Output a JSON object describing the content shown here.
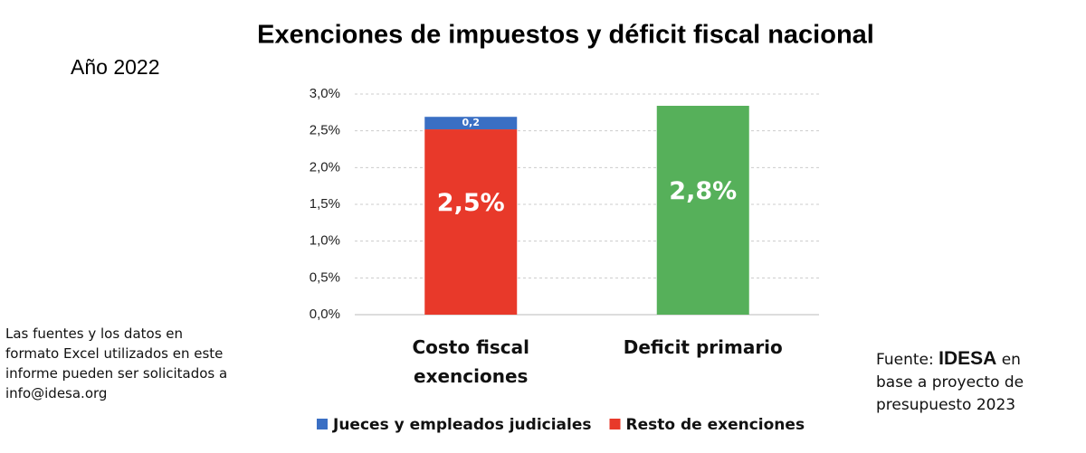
{
  "chart_data": {
    "type": "stacked_bar",
    "title": "Exenciones de impuestos y déficit fiscal nacional",
    "subtitle": "Año 2022",
    "categories": [
      "Costo fiscal exenciones",
      "Deficit primario"
    ],
    "series": [
      {
        "name": "Jueces y empleados judiciales",
        "color": "#3a6fc4",
        "values": [
          0.17,
          null
        ],
        "value_labels": [
          "0,2",
          null
        ]
      },
      {
        "name": "Resto de exenciones",
        "color": "#e8392a",
        "point_colors": [
          "#e8392a",
          "#56b05a"
        ],
        "values": [
          2.52,
          2.84
        ],
        "value_labels": [
          "2,5%",
          "2,8%"
        ]
      }
    ],
    "ylim": [
      0,
      3
    ],
    "yticks": [
      {
        "value": 0,
        "label": "0,0%"
      },
      {
        "value": 0.5,
        "label": "0,5%"
      },
      {
        "value": 1,
        "label": "1,0%"
      },
      {
        "value": 1.5,
        "label": "1,5%"
      },
      {
        "value": 2,
        "label": "2,0%"
      },
      {
        "value": 2.5,
        "label": "2,5%"
      },
      {
        "value": 3,
        "label": "3,0%"
      }
    ],
    "grid": true,
    "legend": "bottom"
  },
  "note": "Las fuentes y los datos en formato Excel utilizados en este informe pueden ser solicitados a info@idesa.org",
  "source": {
    "prefix": "Fuente:",
    "brand": "IDESA",
    "suffix": "en base a proyecto de presupuesto 2023"
  }
}
